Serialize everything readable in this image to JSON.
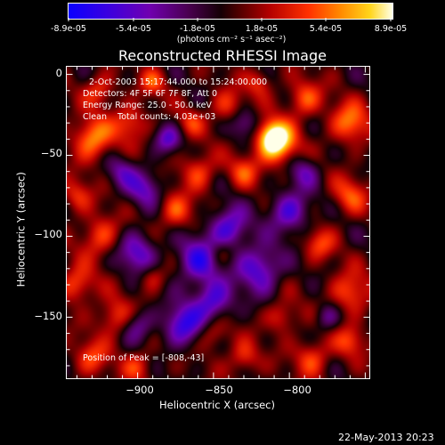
{
  "colorbar": {
    "ticks": [
      "-8.9e-05",
      "-5.4e-05",
      "-1.8e-05",
      "1.8e-05",
      "5.4e-05",
      "8.9e-05"
    ],
    "units_label": "(photons cm⁻² s⁻¹ asec⁻²)"
  },
  "chart_data": {
    "type": "heatmap",
    "title": "Reconstructed RHESSI Image",
    "xlabel": "Heliocentric X (arcsec)",
    "ylabel": "Heliocentric Y (arcsec)",
    "xlim": [
      -947,
      -747
    ],
    "ylim": [
      -188,
      5
    ],
    "x_ticks": [
      -900,
      -850,
      -800
    ],
    "x_tick_labels": [
      "−900",
      "−850",
      "−800"
    ],
    "y_ticks": [
      0,
      -50,
      -100,
      -150
    ],
    "y_tick_labels": [
      "0",
      "−50",
      "−100",
      "−150"
    ],
    "colorscale": "red-temperature (blue→purple→black→red→orange→yellow→white)",
    "zlim": [
      -8.9e-05,
      8.9e-05
    ],
    "peak": [
      -808,
      -43
    ],
    "annotations": {
      "time": "2-Oct-2003 15:17:44.000 to 15:24:00.000",
      "detectors": "Detectors: 4F 5F 6F 7F 8F, Att 0",
      "energy": "Energy Range: 25.0 - 50.0 keV",
      "clean": "Clean    Total counts: 4.03e+03",
      "peak_text": "Position of Peak = [-808,-43]"
    }
  },
  "footer": {
    "date": "22-May-2013 20:23"
  }
}
